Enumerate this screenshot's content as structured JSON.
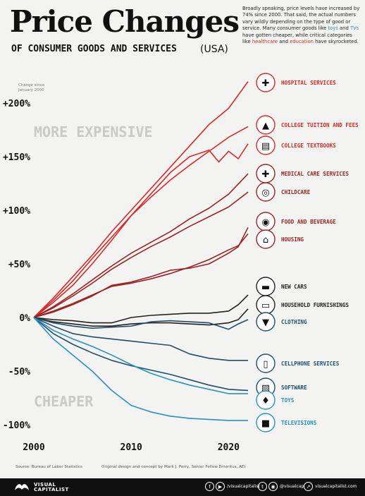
{
  "header": {
    "title": "Price Changes",
    "subtitle": "OF CONSUMER GOODS AND SERVICES",
    "region": "(USA)",
    "intro": {
      "p1": "Broadly speaking, price levels have increased by 74% since 2000. That said, the actual numbers vary wildly depending on the type of good or service. Many consumer goods like ",
      "toys": "toys",
      "and": " and ",
      "tvs": "TVs",
      "p2": " have gotten cheaper, while critical categories like ",
      "healthcare": "healthcare",
      "and2": " and ",
      "education": "education",
      "p3": " have skyrocketed."
    }
  },
  "footer": {
    "source": "Source: Bureau of Labor Statistics",
    "credit": "Original design and concept by Mark J. Perry, Senior Fellow Emeritus, AEI",
    "brand_line1": "VISUAL",
    "brand_line2": "CAPITALIST",
    "social_handle_1": "/visualcapitalist",
    "social_handle_2": "@visualcap",
    "website": "visualcapitalist.com"
  },
  "colors": {
    "background": "#f3f3f1",
    "red": "#d42a2a",
    "dark_red": "#9a2325",
    "black": "#222222",
    "navy": "#1f4e6b",
    "blue": "#2b8fc2"
  },
  "chart_data": {
    "type": "line",
    "ylabel": "Change since January 2000",
    "xlim": [
      2000,
      2022
    ],
    "ylim": [
      -110,
      215
    ],
    "y_ticks": [
      -100,
      -50,
      0,
      50,
      100,
      150,
      200
    ],
    "y_tick_labels": [
      "-100%",
      "-50%",
      "0%",
      "+50%",
      "+100%",
      "+150%",
      "+200%"
    ],
    "x_ticks": [
      2000,
      2010,
      2020
    ],
    "x_tick_labels": [
      "2000",
      "2010",
      "2020"
    ],
    "annotations": {
      "top": "MORE EXPENSIVE",
      "bottom": "CHEAPER"
    },
    "grid": false,
    "legend": "labels at right end of lines",
    "series": [
      {
        "name": "HOSPITAL SERVICES",
        "color": "#d42a2a",
        "icon": "hospital-icon",
        "x": [
          2000,
          2002,
          2004,
          2006,
          2008,
          2010,
          2012,
          2014,
          2016,
          2018,
          2020,
          2022
        ],
        "values": [
          0,
          18,
          38,
          58,
          80,
          100,
          120,
          140,
          160,
          180,
          195,
          220
        ]
      },
      {
        "name": "COLLEGE TUITION AND FEES",
        "color": "#d42a2a",
        "icon": "graduation-cap-icon",
        "x": [
          2000,
          2002,
          2004,
          2006,
          2008,
          2010,
          2012,
          2014,
          2016,
          2018,
          2020,
          2022
        ],
        "values": [
          0,
          16,
          34,
          55,
          75,
          95,
          112,
          128,
          142,
          155,
          168,
          178
        ]
      },
      {
        "name": "COLLEGE TEXTBOOKS",
        "color": "#d42a2a",
        "icon": "book-icon",
        "x": [
          2000,
          2002,
          2004,
          2006,
          2008,
          2010,
          2012,
          2014,
          2016,
          2018,
          2019,
          2020,
          2021,
          2022
        ],
        "values": [
          0,
          14,
          30,
          50,
          72,
          95,
          115,
          135,
          150,
          156,
          145,
          155,
          148,
          162
        ]
      },
      {
        "name": "MEDICAL CARE SERVICES",
        "color": "#9a2325",
        "icon": "medical-kit-icon",
        "x": [
          2000,
          2002,
          2004,
          2006,
          2008,
          2010,
          2012,
          2014,
          2016,
          2018,
          2020,
          2022
        ],
        "values": [
          0,
          10,
          22,
          35,
          48,
          60,
          70,
          80,
          92,
          102,
          115,
          134
        ]
      },
      {
        "name": "CHILDCARE",
        "color": "#9a2325",
        "icon": "stroller-icon",
        "x": [
          2000,
          2002,
          2004,
          2006,
          2008,
          2010,
          2012,
          2014,
          2016,
          2018,
          2020,
          2022
        ],
        "values": [
          0,
          9,
          20,
          32,
          45,
          56,
          66,
          75,
          85,
          94,
          103,
          117
        ]
      },
      {
        "name": "FOOD AND BEVERAGE",
        "color": "#9a2325",
        "icon": "food-icon",
        "x": [
          2000,
          2002,
          2004,
          2006,
          2008,
          2010,
          2012,
          2014,
          2016,
          2018,
          2020,
          2021,
          2022
        ],
        "values": [
          0,
          5,
          12,
          20,
          30,
          33,
          38,
          44,
          46,
          50,
          60,
          66,
          84
        ]
      },
      {
        "name": "HOUSING",
        "color": "#9a2325",
        "icon": "house-icon",
        "x": [
          2000,
          2002,
          2004,
          2006,
          2008,
          2010,
          2012,
          2014,
          2016,
          2018,
          2020,
          2021,
          2022
        ],
        "values": [
          0,
          6,
          13,
          21,
          29,
          32,
          36,
          41,
          47,
          54,
          63,
          67,
          78
        ]
      },
      {
        "name": "NEW CARS",
        "color": "#222222",
        "icon": "car-icon",
        "x": [
          2000,
          2002,
          2004,
          2006,
          2008,
          2010,
          2012,
          2014,
          2016,
          2018,
          2020,
          2021,
          2022
        ],
        "values": [
          0,
          -2,
          -3,
          -5,
          -5,
          0,
          2,
          3,
          4,
          4,
          6,
          12,
          21
        ]
      },
      {
        "name": "HOUSEHOLD FURNISHINGS",
        "color": "#222222",
        "icon": "sofa-icon",
        "x": [
          2000,
          2002,
          2004,
          2006,
          2008,
          2010,
          2012,
          2014,
          2016,
          2018,
          2020,
          2021,
          2022
        ],
        "values": [
          0,
          -4,
          -6,
          -8,
          -8,
          -6,
          -5,
          -5,
          -6,
          -7,
          -5,
          -2,
          8
        ]
      },
      {
        "name": "CLOTHING",
        "color": "#1f4e6b",
        "icon": "shirt-icon",
        "x": [
          2000,
          2002,
          2004,
          2006,
          2008,
          2010,
          2012,
          2014,
          2016,
          2018,
          2020,
          2021,
          2022
        ],
        "values": [
          0,
          -5,
          -8,
          -10,
          -9,
          -8,
          -4,
          -3,
          -4,
          -5,
          -11,
          -6,
          -2
        ]
      },
      {
        "name": "CELLPHONE SERVICES",
        "color": "#1f4e6b",
        "icon": "cellphone-icon",
        "x": [
          2000,
          2002,
          2004,
          2006,
          2008,
          2010,
          2012,
          2014,
          2016,
          2018,
          2020,
          2022
        ],
        "values": [
          0,
          -8,
          -15,
          -18,
          -20,
          -22,
          -24,
          -26,
          -34,
          -38,
          -40,
          -40
        ]
      },
      {
        "name": "SOFTWARE",
        "color": "#1f4e6b",
        "icon": "software-icon",
        "x": [
          2000,
          2002,
          2004,
          2006,
          2008,
          2010,
          2012,
          2014,
          2016,
          2018,
          2020,
          2022
        ],
        "values": [
          0,
          -15,
          -25,
          -33,
          -40,
          -45,
          -49,
          -53,
          -58,
          -63,
          -67,
          -68
        ]
      },
      {
        "name": "TOYS",
        "color": "#2b8fc2",
        "icon": "toy-icon",
        "x": [
          2000,
          2002,
          2004,
          2006,
          2008,
          2010,
          2012,
          2014,
          2016,
          2018,
          2020,
          2022
        ],
        "values": [
          0,
          -12,
          -20,
          -27,
          -35,
          -44,
          -52,
          -58,
          -63,
          -67,
          -71,
          -71
        ]
      },
      {
        "name": "TELEVISIONS",
        "color": "#2b8fc2",
        "icon": "tv-icon",
        "x": [
          2000,
          2002,
          2004,
          2006,
          2008,
          2010,
          2012,
          2014,
          2016,
          2018,
          2020,
          2022
        ],
        "values": [
          0,
          -20,
          -35,
          -50,
          -68,
          -82,
          -88,
          -92,
          -94,
          -95,
          -96,
          -96
        ]
      }
    ]
  }
}
